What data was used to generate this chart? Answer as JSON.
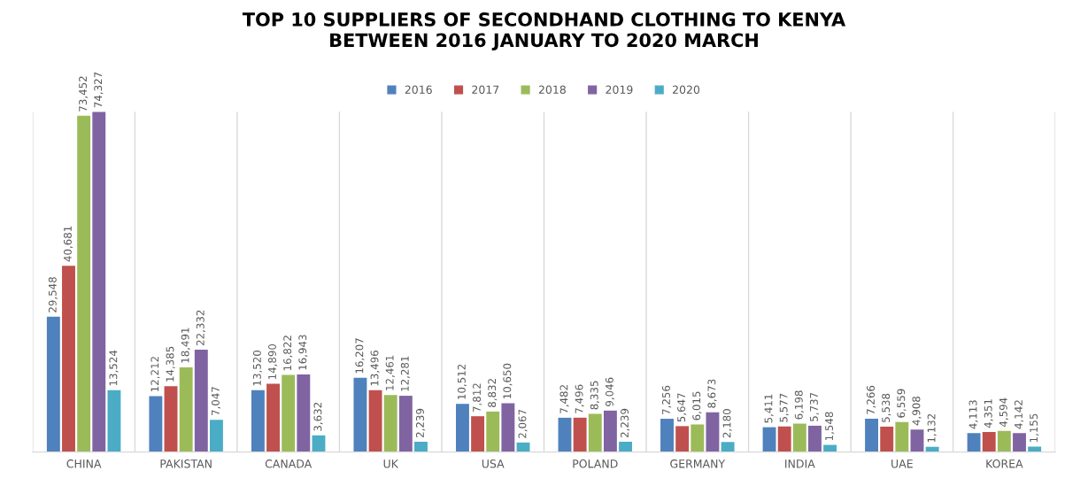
{
  "chart_data": {
    "type": "bar",
    "title": "TOP 10 SUPPLIERS OF SECONDHAND CLOTHING TO KENYA\nBETWEEN 2016 JANUARY TO 2020 MARCH",
    "categories": [
      "CHINA",
      "PAKISTAN",
      "CANADA",
      "UK",
      "USA",
      "POLAND",
      "GERMANY",
      "INDIA",
      "UAE",
      "KOREA"
    ],
    "series": [
      {
        "name": "2016",
        "color": "#4f81bd",
        "values": [
          29548,
          12212,
          13520,
          16207,
          10512,
          7482,
          7256,
          5411,
          7266,
          4113
        ],
        "value_labels": [
          "29,548",
          "12,212",
          "13,520",
          "16,207",
          "10,512",
          "7,482",
          "7,256",
          "5,411",
          "7,266",
          "4,113"
        ]
      },
      {
        "name": "2017",
        "color": "#c0504d",
        "values": [
          40681,
          14385,
          14890,
          13496,
          7812,
          7496,
          5647,
          5577,
          5538,
          4351
        ],
        "value_labels": [
          "40,681",
          "14,385",
          "14,890",
          "13,496",
          "7,812",
          "7,496",
          "5,647",
          "5,577",
          "5,538",
          "4,351"
        ]
      },
      {
        "name": "2018",
        "color": "#9bbb59",
        "values": [
          73452,
          18491,
          16822,
          12461,
          8832,
          8335,
          6015,
          6198,
          6559,
          4594
        ],
        "value_labels": [
          "73,452",
          "18,491",
          "16,822",
          "12,461",
          "8,832",
          "8,335",
          "6,015",
          "6,198",
          "6,559",
          "4,594"
        ]
      },
      {
        "name": "2019",
        "color": "#8064a2",
        "values": [
          74327,
          22332,
          16943,
          12281,
          10650,
          9046,
          8673,
          5737,
          4908,
          4142
        ],
        "value_labels": [
          "74,327",
          "22,332",
          "16,943",
          "12,281",
          "10,650",
          "9,046",
          "8,673",
          "5,737",
          "4,908",
          "4,142"
        ]
      },
      {
        "name": "2020",
        "color": "#4bacc6",
        "values": [
          13524,
          7047,
          3632,
          2239,
          2067,
          2239,
          2180,
          1548,
          1132,
          1155
        ],
        "value_labels": [
          "13,524",
          "7,047",
          "3,632",
          "2,239",
          "2,067",
          "2,239",
          "2,180",
          "1,548",
          "1,132",
          "1,155"
        ]
      }
    ],
    "legend": "top",
    "grid": "x"
  }
}
